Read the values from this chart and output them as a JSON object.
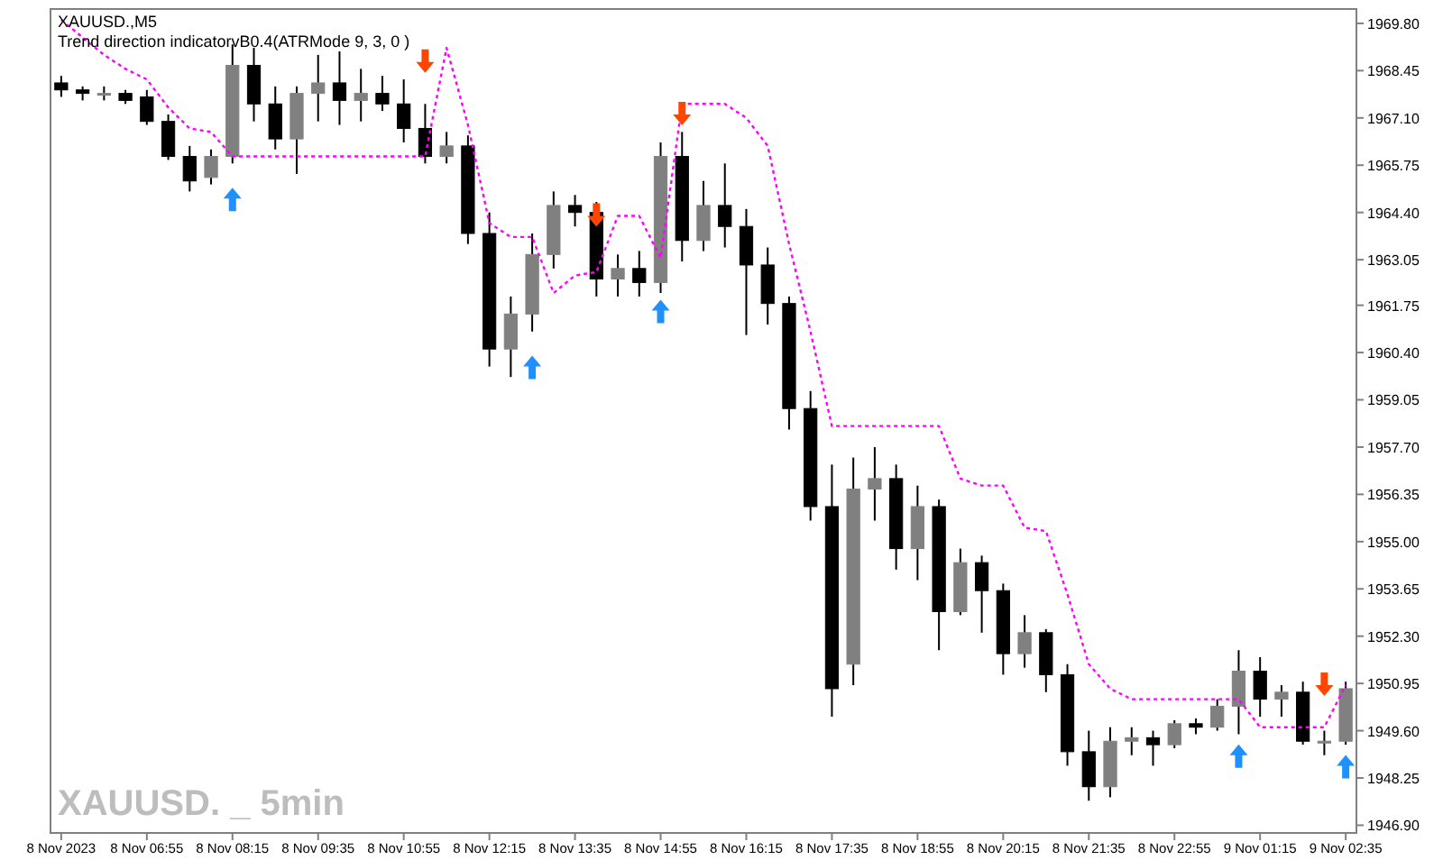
{
  "chart_data": {
    "type": "candlestick",
    "title": "XAUUSD.,M5",
    "subtitle": "Trend direction indicatorvB0.4(ATRMode 9, 3, 0 )",
    "annotations": [
      "XAUUSD. _ 5min"
    ],
    "categories": [
      "8 Nov 2023",
      null,
      null,
      null,
      "8 Nov 06:55",
      null,
      null,
      null,
      "8 Nov 08:15",
      null,
      null,
      null,
      "8 Nov 09:35",
      null,
      null,
      null,
      "8 Nov 10:55",
      null,
      null,
      null,
      "8 Nov 12:15",
      null,
      null,
      null,
      "8 Nov 13:35",
      null,
      null,
      null,
      "8 Nov 14:55",
      null,
      null,
      null,
      "8 Nov 16:15",
      null,
      null,
      null,
      "8 Nov 17:35",
      null,
      null,
      null,
      "8 Nov 18:55",
      null,
      null,
      null,
      "8 Nov 20:15",
      null,
      null,
      null,
      "8 Nov 21:35",
      null,
      null,
      null,
      "8 Nov 22:55",
      null,
      null,
      null,
      "9 Nov 01:15",
      null,
      null,
      null,
      "9 Nov 02:35"
    ],
    "ylim": [
      1946.68,
      1970.21
    ],
    "yticks": [
      {
        "value": 1969.8,
        "label": "1969.80"
      },
      {
        "value": 1968.45,
        "label": "1968.45"
      },
      {
        "value": 1967.1,
        "label": "1967.10"
      },
      {
        "value": 1965.75,
        "label": "1965.75"
      },
      {
        "value": 1964.4,
        "label": "1964.40"
      },
      {
        "value": 1963.05,
        "label": "1963.05"
      },
      {
        "value": 1961.75,
        "label": "1961.75"
      },
      {
        "value": 1960.4,
        "label": "1960.40"
      },
      {
        "value": 1959.05,
        "label": "1959.05"
      },
      {
        "value": 1957.7,
        "label": "1957.70"
      },
      {
        "value": 1956.35,
        "label": "1956.35"
      },
      {
        "value": 1955,
        "label": "1955.00"
      },
      {
        "value": 1953.65,
        "label": "1953.65"
      },
      {
        "value": 1952.3,
        "label": "1952.30"
      },
      {
        "value": 1950.95,
        "label": "1950.95"
      },
      {
        "value": 1949.6,
        "label": "1949.60"
      },
      {
        "value": 1948.25,
        "label": "1948.25"
      },
      {
        "value": 1946.9,
        "label": "1946.90"
      }
    ],
    "color": "#000000",
    "grid": false,
    "colors": [
      "#000000",
      "#000000",
      "#808080",
      "#000000",
      "#000000",
      "#000000",
      "#000000",
      "#808080",
      "#808080",
      "#000000",
      "#000000",
      "#808080",
      "#808080",
      "#000000",
      "#808080",
      "#000000",
      "#000000",
      "#000000",
      "#808080",
      "#000000",
      "#000000",
      "#808080",
      "#808080",
      "#808080",
      "#000000",
      "#000000",
      "#808080",
      "#000000",
      "#808080",
      "#000000",
      "#808080",
      "#000000",
      "#000000",
      "#000000",
      "#000000",
      "#000000",
      "#000000",
      "#808080",
      "#808080",
      "#000000",
      "#808080",
      "#000000",
      "#808080",
      "#000000",
      "#000000",
      "#808080",
      "#000000",
      "#000000",
      "#000000",
      "#808080",
      "#808080",
      "#000000",
      "#808080",
      "#000000",
      "#808080",
      "#808080",
      "#000000",
      "#808080",
      "#000000",
      "#808080",
      "#808080"
    ],
    "ohlc": [
      [
        1968.1,
        1968.3,
        1967.7,
        1967.9
      ],
      [
        1967.9,
        1968.0,
        1967.6,
        1967.8
      ],
      [
        1967.8,
        1968.0,
        1967.6,
        1967.8
      ],
      [
        1967.8,
        1967.9,
        1967.5,
        1967.6
      ],
      [
        1967.7,
        1967.9,
        1966.9,
        1967.0
      ],
      [
        1967.0,
        1967.2,
        1965.9,
        1966.0
      ],
      [
        1966.0,
        1966.3,
        1965.0,
        1965.3
      ],
      [
        1965.4,
        1966.2,
        1965.2,
        1966.0
      ],
      [
        1966.0,
        1969.2,
        1965.8,
        1968.6
      ],
      [
        1968.6,
        1969.1,
        1967.0,
        1967.5
      ],
      [
        1967.5,
        1968.0,
        1966.2,
        1966.5
      ],
      [
        1966.5,
        1968.0,
        1965.5,
        1967.8
      ],
      [
        1967.8,
        1968.9,
        1967.0,
        1968.1
      ],
      [
        1968.1,
        1969.0,
        1966.9,
        1967.6
      ],
      [
        1967.6,
        1968.5,
        1967.0,
        1967.8
      ],
      [
        1967.8,
        1968.3,
        1967.3,
        1967.5
      ],
      [
        1967.5,
        1968.2,
        1966.4,
        1966.8
      ],
      [
        1966.8,
        1967.5,
        1965.8,
        1966.0
      ],
      [
        1966.0,
        1966.7,
        1965.8,
        1966.3
      ],
      [
        1966.3,
        1966.6,
        1963.5,
        1963.8
      ],
      [
        1963.8,
        1964.4,
        1960.0,
        1960.5
      ],
      [
        1960.5,
        1962.0,
        1959.7,
        1961.5
      ],
      [
        1961.5,
        1963.8,
        1961.0,
        1963.2
      ],
      [
        1963.2,
        1965.0,
        1962.8,
        1964.6
      ],
      [
        1964.6,
        1964.9,
        1964.0,
        1964.4
      ],
      [
        1964.4,
        1964.7,
        1962.0,
        1962.5
      ],
      [
        1962.5,
        1963.2,
        1962.0,
        1962.8
      ],
      [
        1962.8,
        1963.3,
        1962.0,
        1962.4
      ],
      [
        1962.4,
        1966.4,
        1962.1,
        1966.0
      ],
      [
        1966.0,
        1966.7,
        1963.0,
        1963.6
      ],
      [
        1963.6,
        1965.3,
        1963.3,
        1964.6
      ],
      [
        1964.6,
        1965.8,
        1963.4,
        1964.0
      ],
      [
        1964.0,
        1964.5,
        1960.9,
        1962.9
      ],
      [
        1962.9,
        1963.4,
        1961.2,
        1961.8
      ],
      [
        1961.8,
        1962.0,
        1958.2,
        1958.8
      ],
      [
        1958.8,
        1959.3,
        1955.6,
        1956.0
      ],
      [
        1956.0,
        1957.2,
        1950.0,
        1950.8
      ],
      [
        1951.5,
        1957.4,
        1950.9,
        1956.5
      ],
      [
        1956.5,
        1957.7,
        1955.6,
        1956.8
      ],
      [
        1956.8,
        1957.2,
        1954.2,
        1954.8
      ],
      [
        1954.8,
        1956.6,
        1953.9,
        1956.0
      ],
      [
        1956.0,
        1956.2,
        1951.9,
        1953.0
      ],
      [
        1953.0,
        1954.8,
        1952.9,
        1954.4
      ],
      [
        1954.4,
        1954.6,
        1952.4,
        1953.6
      ],
      [
        1953.6,
        1953.8,
        1951.2,
        1951.8
      ],
      [
        1951.8,
        1952.9,
        1951.4,
        1952.4
      ],
      [
        1952.4,
        1952.5,
        1950.7,
        1951.2
      ],
      [
        1951.2,
        1951.5,
        1948.6,
        1949.0
      ],
      [
        1949.0,
        1949.6,
        1947.6,
        1948.0
      ],
      [
        1948.0,
        1949.7,
        1947.7,
        1949.3
      ],
      [
        1949.3,
        1949.7,
        1948.9,
        1949.4
      ],
      [
        1949.4,
        1949.6,
        1948.6,
        1949.2
      ],
      [
        1949.2,
        1949.9,
        1949.1,
        1949.8
      ],
      [
        1949.8,
        1949.95,
        1949.5,
        1949.7
      ],
      [
        1949.7,
        1950.5,
        1949.6,
        1950.3
      ],
      [
        1950.3,
        1951.9,
        1949.5,
        1951.3
      ],
      [
        1951.3,
        1951.7,
        1950.0,
        1950.5
      ],
      [
        1950.5,
        1950.9,
        1950.0,
        1950.7
      ],
      [
        1950.7,
        1951.0,
        1949.2,
        1949.3
      ],
      [
        1949.3,
        1949.6,
        1948.9,
        1949.3
      ],
      [
        1949.3,
        1951.0,
        1949.2,
        1950.8
      ]
    ],
    "series": [
      {
        "type": "line",
        "color": "#ff00ff",
        "line_style": "dotted",
        "values": [
          1969.9,
          1969.4,
          1968.9,
          1968.5,
          1968.2,
          1967.4,
          1966.8,
          1966.7,
          1966.0,
          1966.0,
          1966.0,
          1966.0,
          1966.0,
          1966.0,
          1966.0,
          1966.0,
          1966.0,
          1966.0,
          1969.1,
          1966.9,
          1964.1,
          1963.7,
          1963.7,
          1962.1,
          1962.6,
          1962.7,
          1964.3,
          1964.3,
          1963.1,
          1967.5,
          1967.5,
          1967.5,
          1967.1,
          1966.3,
          1963.5,
          1961.0,
          1958.3,
          1958.3,
          1958.3,
          1958.3,
          1958.3,
          1958.3,
          1956.8,
          1956.6,
          1956.6,
          1955.4,
          1955.3,
          1953.5,
          1951.5,
          1950.8,
          1950.5,
          1950.5,
          1950.5,
          1950.5,
          1950.5,
          1950.5,
          1949.7,
          1949.7,
          1949.7,
          1949.7,
          1950.9
        ]
      },
      {
        "type": "scatter",
        "color": "#1e90ff",
        "marker": "triangle",
        "values": [
          null,
          null,
          null,
          null,
          null,
          null,
          null,
          null,
          1964.8,
          null,
          null,
          null,
          null,
          null,
          null,
          null,
          null,
          null,
          null,
          null,
          null,
          null,
          1960.0,
          null,
          null,
          null,
          null,
          null,
          1961.6,
          null,
          null,
          null,
          null,
          null,
          null,
          null,
          null,
          null,
          null,
          null,
          null,
          null,
          null,
          null,
          null,
          null,
          null,
          null,
          null,
          null,
          null,
          null,
          null,
          null,
          null,
          1948.9,
          null,
          null,
          null,
          null,
          1948.6
        ]
      },
      {
        "type": "scatter",
        "color": "#ff4500",
        "marker": "triangle-down",
        "values": [
          null,
          null,
          null,
          null,
          null,
          null,
          null,
          null,
          null,
          null,
          null,
          null,
          null,
          null,
          null,
          null,
          null,
          1968.7,
          null,
          null,
          null,
          null,
          null,
          null,
          null,
          1964.3,
          null,
          null,
          null,
          1967.2,
          null,
          null,
          null,
          null,
          null,
          null,
          null,
          null,
          null,
          null,
          null,
          null,
          null,
          null,
          null,
          null,
          null,
          null,
          null,
          null,
          null,
          null,
          null,
          null,
          null,
          null,
          null,
          null,
          null,
          1950.9,
          null
        ]
      }
    ]
  }
}
